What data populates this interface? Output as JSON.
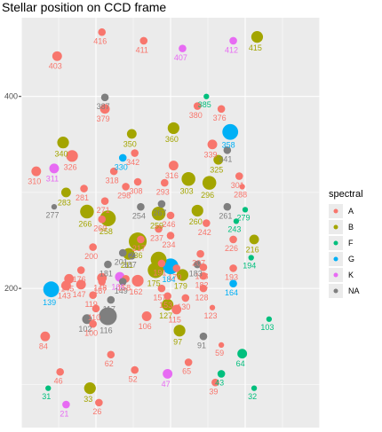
{
  "title": "Stellar position on CCD frame",
  "chart_data": {
    "type": "scatter",
    "title": "Stellar position on CCD frame",
    "xlabel": "",
    "ylabel": "",
    "xlim": [
      0,
      100
    ],
    "ylim": [
      55,
      482
    ],
    "y_ticks": [
      200,
      400
    ],
    "grid": true,
    "legend": {
      "title": "spectral",
      "position": "right",
      "entries": [
        "A",
        "B",
        "F",
        "G",
        "K",
        "NA"
      ]
    },
    "colors": {
      "A": "#F8766D",
      "B": "#A3A500",
      "F": "#00BF7D",
      "G": "#00B0F6",
      "K": "#E76BF3",
      "NA": "#7F7F7F"
    },
    "points": [
      {
        "id": "403",
        "x": 12,
        "y": 442,
        "size": 3,
        "spectral": "A"
      },
      {
        "id": "416",
        "x": 27,
        "y": 467,
        "size": 2,
        "spectral": "A"
      },
      {
        "id": "411",
        "x": 41,
        "y": 458,
        "size": 2,
        "spectral": "A"
      },
      {
        "id": "407",
        "x": 54,
        "y": 450,
        "size": 2,
        "spectral": "K"
      },
      {
        "id": "412",
        "x": 71,
        "y": 458,
        "size": 2,
        "spectral": "K"
      },
      {
        "id": "415",
        "x": 79,
        "y": 462,
        "size": 4,
        "spectral": "B"
      },
      {
        "id": "387",
        "x": 28,
        "y": 399,
        "size": 2,
        "spectral": "NA"
      },
      {
        "id": "379",
        "x": 28,
        "y": 387,
        "size": 3,
        "spectral": "A"
      },
      {
        "id": "385",
        "x": 62,
        "y": 400,
        "size": 1,
        "spectral": "F"
      },
      {
        "id": "380",
        "x": 59,
        "y": 390,
        "size": 2,
        "spectral": "A"
      },
      {
        "id": "376",
        "x": 67,
        "y": 387,
        "size": 2,
        "spectral": "A"
      },
      {
        "id": "360",
        "x": 51,
        "y": 367,
        "size": 4,
        "spectral": "B"
      },
      {
        "id": "358",
        "x": 70,
        "y": 363,
        "size": 6,
        "spectral": "G"
      },
      {
        "id": "350",
        "x": 37,
        "y": 361,
        "size": 3,
        "spectral": "B"
      },
      {
        "id": "340",
        "x": 14,
        "y": 352,
        "size": 4,
        "spectral": "B"
      },
      {
        "id": "342",
        "x": 38,
        "y": 341,
        "size": 2,
        "spectral": "A"
      },
      {
        "id": "339",
        "x": 64,
        "y": 350,
        "size": 3,
        "spectral": "A"
      },
      {
        "id": "341",
        "x": 69,
        "y": 344,
        "size": 2,
        "spectral": "NA"
      },
      {
        "id": "326",
        "x": 17,
        "y": 338,
        "size": 4,
        "spectral": "A"
      },
      {
        "id": "330",
        "x": 34,
        "y": 336,
        "size": 2,
        "spectral": "G"
      },
      {
        "id": "325",
        "x": 66,
        "y": 334,
        "size": 3,
        "spectral": "B"
      },
      {
        "id": "311",
        "x": 11,
        "y": 325,
        "size": 3,
        "spectral": "K"
      },
      {
        "id": "310",
        "x": 5,
        "y": 322,
        "size": 3,
        "spectral": "A"
      },
      {
        "id": "318",
        "x": 31,
        "y": 322,
        "size": 2,
        "spectral": "A"
      },
      {
        "id": "316",
        "x": 51,
        "y": 328,
        "size": 3,
        "spectral": "A"
      },
      {
        "id": "301",
        "x": 73,
        "y": 317,
        "size": 2,
        "spectral": "A"
      },
      {
        "id": "308",
        "x": 39,
        "y": 311,
        "size": 2,
        "spectral": "A"
      },
      {
        "id": "293",
        "x": 48,
        "y": 310,
        "size": 2,
        "spectral": "A"
      },
      {
        "id": "303",
        "x": 56,
        "y": 314,
        "size": 5,
        "spectral": "B"
      },
      {
        "id": "296",
        "x": 63,
        "y": 310,
        "size": 5,
        "spectral": "B"
      },
      {
        "id": "288",
        "x": 74,
        "y": 306,
        "size": 1,
        "spectral": "A"
      },
      {
        "id": "283",
        "x": 15,
        "y": 300,
        "size": 3,
        "spectral": "B"
      },
      {
        "id": "281",
        "x": 21,
        "y": 304,
        "size": 2,
        "spectral": "A"
      },
      {
        "id": "298",
        "x": 35,
        "y": 306,
        "size": 2,
        "spectral": "A"
      },
      {
        "id": "261",
        "x": 69,
        "y": 285,
        "size": 2,
        "spectral": "NA"
      },
      {
        "id": "279",
        "x": 75,
        "y": 282,
        "size": 1,
        "spectral": "F"
      },
      {
        "id": "277",
        "x": 11,
        "y": 285,
        "size": 1,
        "spectral": "NA"
      },
      {
        "id": "271",
        "x": 28,
        "y": 291,
        "size": 2,
        "spectral": "A"
      },
      {
        "id": "266",
        "x": 22,
        "y": 280,
        "size": 5,
        "spectral": "B"
      },
      {
        "id": "269",
        "x": 27,
        "y": 272,
        "size": 2,
        "spectral": "A"
      },
      {
        "id": "258",
        "x": 29,
        "y": 273,
        "size": 6,
        "spectral": "B"
      },
      {
        "id": "254",
        "x": 40,
        "y": 285,
        "size": 2,
        "spectral": "NA"
      },
      {
        "id": "267",
        "x": 47,
        "y": 288,
        "size": 2,
        "spectral": "NA"
      },
      {
        "id": "259",
        "x": 46,
        "y": 278,
        "size": 5,
        "spectral": "B"
      },
      {
        "id": "246",
        "x": 50,
        "y": 276,
        "size": 2,
        "spectral": "A"
      },
      {
        "id": "260",
        "x": 59,
        "y": 281,
        "size": 4,
        "spectral": "B"
      },
      {
        "id": "243",
        "x": 72,
        "y": 270,
        "size": 1,
        "spectral": "F"
      },
      {
        "id": "242",
        "x": 62,
        "y": 268,
        "size": 2,
        "spectral": "A"
      },
      {
        "id": "237",
        "x": 46,
        "y": 262,
        "size": 2,
        "spectral": "A"
      },
      {
        "id": "217",
        "x": 40,
        "y": 251,
        "size": 2,
        "spectral": "A"
      },
      {
        "id": "234",
        "x": 50,
        "y": 255,
        "size": 2,
        "spectral": "A"
      },
      {
        "id": "236",
        "x": 39,
        "y": 249,
        "size": 7,
        "spectral": "B"
      },
      {
        "id": "201",
        "x": 34,
        "y": 237,
        "size": 2,
        "spectral": "NA"
      },
      {
        "id": "211",
        "x": 36,
        "y": 236,
        "size": 4,
        "spectral": "B"
      },
      {
        "id": "226",
        "x": 71,
        "y": 251,
        "size": 2,
        "spectral": "A"
      },
      {
        "id": "216",
        "x": 78,
        "y": 251,
        "size": 3,
        "spectral": "B"
      },
      {
        "id": "207",
        "x": 60,
        "y": 236,
        "size": 2,
        "spectral": "A"
      },
      {
        "id": "200",
        "x": 24,
        "y": 243,
        "size": 2,
        "spectral": "A"
      },
      {
        "id": "190",
        "x": 46,
        "y": 230,
        "size": 6,
        "spectral": "B"
      },
      {
        "id": "187",
        "x": 37,
        "y": 234,
        "size": 2,
        "spectral": "NA"
      },
      {
        "id": "191",
        "x": 47,
        "y": 226,
        "size": 2,
        "spectral": "A"
      },
      {
        "id": "188",
        "x": 61,
        "y": 222,
        "size": 2,
        "spectral": "A"
      },
      {
        "id": "181",
        "x": 29,
        "y": 225,
        "size": 2,
        "spectral": "NA"
      },
      {
        "id": "183",
        "x": 59,
        "y": 225,
        "size": 2,
        "spectral": "NA"
      },
      {
        "id": "175",
        "x": 45,
        "y": 219,
        "size": 6,
        "spectral": "B"
      },
      {
        "id": "184",
        "x": 50,
        "y": 223,
        "size": 6,
        "spectral": "G"
      },
      {
        "id": "170",
        "x": 52,
        "y": 221,
        "size": 2,
        "spectral": "A"
      },
      {
        "id": "179",
        "x": 54,
        "y": 214,
        "size": 4,
        "spectral": "B"
      },
      {
        "id": "182",
        "x": 61,
        "y": 213,
        "size": 2,
        "spectral": "A"
      },
      {
        "id": "193",
        "x": 71,
        "y": 221,
        "size": 2,
        "spectral": "A"
      },
      {
        "id": "194",
        "x": 77,
        "y": 232,
        "size": 1,
        "spectral": "F"
      },
      {
        "id": "176",
        "x": 20,
        "y": 219,
        "size": 2,
        "spectral": "A"
      },
      {
        "id": "167",
        "x": 27,
        "y": 207,
        "size": 2,
        "spectral": "A"
      },
      {
        "id": "166",
        "x": 33,
        "y": 212,
        "size": 3,
        "spectral": "K"
      },
      {
        "id": "162",
        "x": 39,
        "y": 208,
        "size": 4,
        "spectral": "A"
      },
      {
        "id": "148",
        "x": 27,
        "y": 211,
        "size": 3,
        "spectral": "A"
      },
      {
        "id": "145",
        "x": 16,
        "y": 210,
        "size": 3,
        "spectral": "A"
      },
      {
        "id": "147",
        "x": 20,
        "y": 204,
        "size": 3,
        "spectral": "A"
      },
      {
        "id": "149",
        "x": 34,
        "y": 207,
        "size": 2,
        "spectral": "NA"
      },
      {
        "id": "157",
        "x": 47,
        "y": 200,
        "size": 2,
        "spectral": "A"
      },
      {
        "id": "164",
        "x": 71,
        "y": 205,
        "size": 2,
        "spectral": "G"
      },
      {
        "id": "139",
        "x": 10,
        "y": 199,
        "size": 6,
        "spectral": "G"
      },
      {
        "id": "143",
        "x": 15,
        "y": 203,
        "size": 3,
        "spectral": "A"
      },
      {
        "id": "158",
        "x": 35,
        "y": 210,
        "size": 2,
        "spectral": "A"
      },
      {
        "id": "128",
        "x": 61,
        "y": 200,
        "size": 2,
        "spectral": "A"
      },
      {
        "id": "153",
        "x": 49,
        "y": 192,
        "size": 2,
        "spectral": "A"
      },
      {
        "id": "130",
        "x": 55,
        "y": 190,
        "size": 2,
        "spectral": "A"
      },
      {
        "id": "127",
        "x": 49,
        "y": 183,
        "size": 4,
        "spectral": "B"
      },
      {
        "id": "119",
        "x": 24,
        "y": 193,
        "size": 2,
        "spectral": "A"
      },
      {
        "id": "117",
        "x": 30,
        "y": 188,
        "size": 2,
        "spectral": "NA"
      },
      {
        "id": "123",
        "x": 64,
        "y": 180,
        "size": 1,
        "spectral": "A"
      },
      {
        "id": "116",
        "x": 29,
        "y": 171,
        "size": 7,
        "spectral": "NA"
      },
      {
        "id": "110",
        "x": 25,
        "y": 179,
        "size": 2,
        "spectral": "A"
      },
      {
        "id": "102",
        "x": 22,
        "y": 168,
        "size": 3,
        "spectral": "NA"
      },
      {
        "id": "106",
        "x": 42,
        "y": 171,
        "size": 3,
        "spectral": "A"
      },
      {
        "id": "115",
        "x": 52,
        "y": 178,
        "size": 3,
        "spectral": "A"
      },
      {
        "id": "103",
        "x": 83,
        "y": 168,
        "size": 1,
        "spectral": "F"
      },
      {
        "id": "100",
        "x": 24,
        "y": 163,
        "size": 2,
        "spectral": "A"
      },
      {
        "id": "84",
        "x": 8,
        "y": 150,
        "size": 3,
        "spectral": "A"
      },
      {
        "id": "97",
        "x": 53,
        "y": 156,
        "size": 4,
        "spectral": "B"
      },
      {
        "id": "91",
        "x": 61,
        "y": 150,
        "size": 2,
        "spectral": "NA"
      },
      {
        "id": "59",
        "x": 67,
        "y": 141,
        "size": 1,
        "spectral": "A"
      },
      {
        "id": "65",
        "x": 56,
        "y": 123,
        "size": 2,
        "spectral": "A"
      },
      {
        "id": "64",
        "x": 74,
        "y": 132,
        "size": 3,
        "spectral": "F"
      },
      {
        "id": "62",
        "x": 30,
        "y": 131,
        "size": 2,
        "spectral": "A"
      },
      {
        "id": "52",
        "x": 38,
        "y": 115,
        "size": 2,
        "spectral": "A"
      },
      {
        "id": "47",
        "x": 49,
        "y": 111,
        "size": 3,
        "spectral": "K"
      },
      {
        "id": "43",
        "x": 67,
        "y": 111,
        "size": 2,
        "spectral": "F"
      },
      {
        "id": "46",
        "x": 13,
        "y": 113,
        "size": 2,
        "spectral": "A"
      },
      {
        "id": "33",
        "x": 23,
        "y": 96,
        "size": 4,
        "spectral": "B"
      },
      {
        "id": "39",
        "x": 65,
        "y": 102,
        "size": 2,
        "spectral": "A"
      },
      {
        "id": "31",
        "x": 9,
        "y": 96,
        "size": 1,
        "spectral": "F"
      },
      {
        "id": "32",
        "x": 78,
        "y": 96,
        "size": 1,
        "spectral": "F"
      },
      {
        "id": "26",
        "x": 26,
        "y": 81,
        "size": 2,
        "spectral": "A"
      },
      {
        "id": "21",
        "x": 15,
        "y": 79,
        "size": 2,
        "spectral": "K"
      }
    ]
  }
}
